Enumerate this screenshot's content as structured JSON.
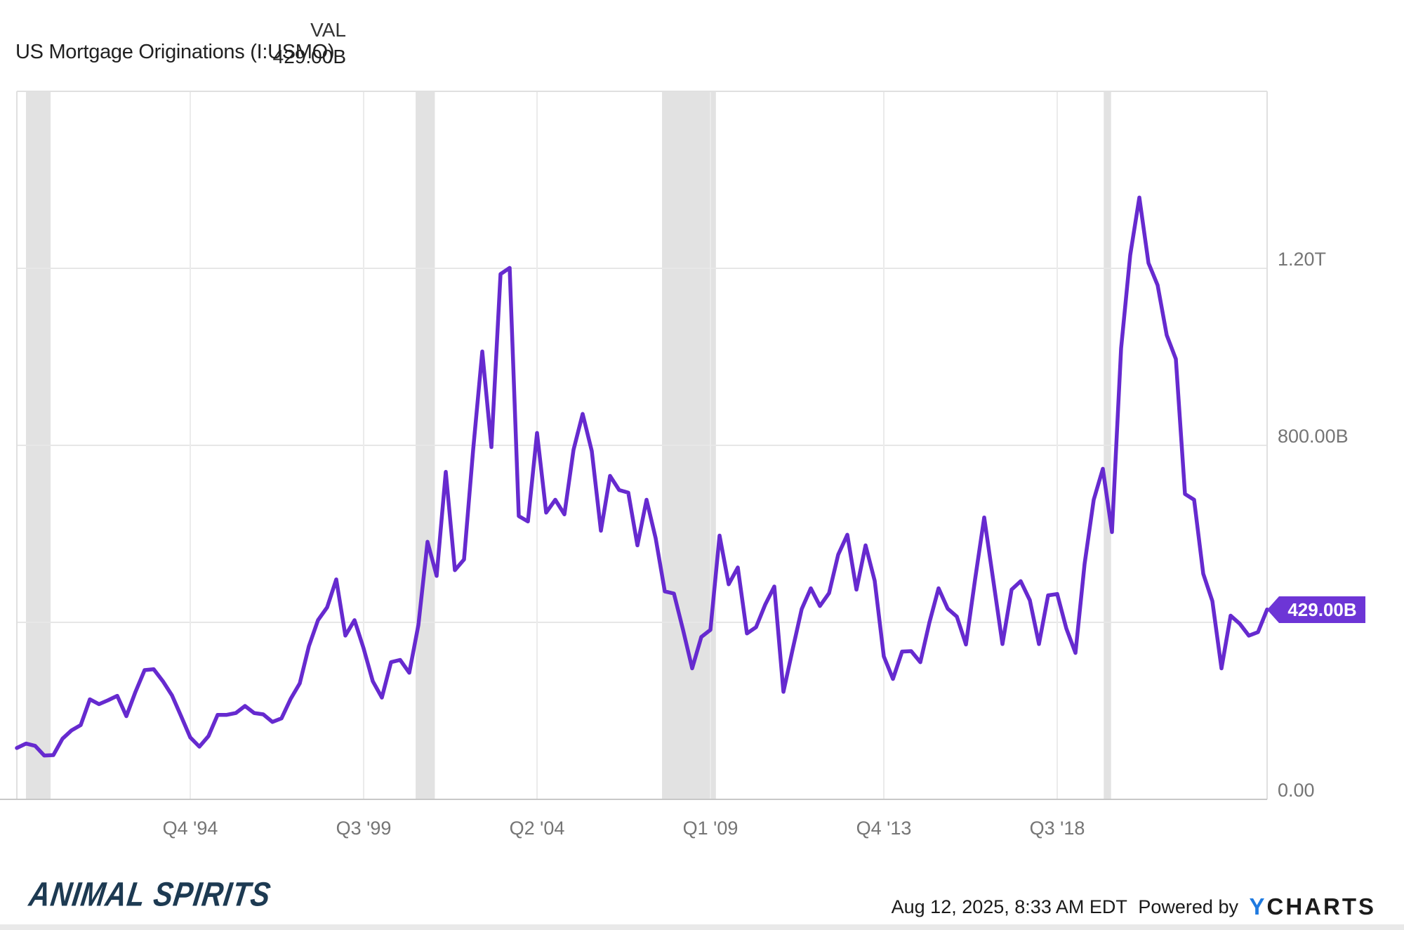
{
  "header": {
    "title": "US Mortgage Originations (I:USMO)",
    "col_label": "VAL",
    "col_value": "429.00B"
  },
  "badge": {
    "label": "429.00B",
    "color": "#6d35d6"
  },
  "footer": {
    "brand": "ANIMAL SPIRITS",
    "timestamp": "Aug 12, 2025, 8:33 AM EDT",
    "powered_by": "Powered by",
    "ycharts_y": "Y",
    "ycharts_rest": "CHARTS"
  },
  "chart_data": {
    "type": "line",
    "title": "US Mortgage Originations (I:USMO)",
    "unit": "USD billions",
    "frequency": "quarterly",
    "x_start": "Q1 1990",
    "x_end": "Q2 2024",
    "ylim": [
      0,
      1600
    ],
    "grid": true,
    "line_color": "#662acf",
    "band_color": "#e2e2e2",
    "latest_value": "429.00B",
    "y_ticks": [
      {
        "value": 0,
        "label": "0.00"
      },
      {
        "value": 400,
        "label": ""
      },
      {
        "value": 800,
        "label": "800.00B"
      },
      {
        "value": 1200,
        "label": "1.20T"
      }
    ],
    "x_ticks": [
      {
        "q": 19,
        "label": "Q4 '94"
      },
      {
        "q": 38,
        "label": "Q3 '99"
      },
      {
        "q": 57,
        "label": "Q2 '04"
      },
      {
        "q": 76,
        "label": "Q1 '09"
      },
      {
        "q": 95,
        "label": "Q4 '13"
      },
      {
        "q": 114,
        "label": "Q3 '18"
      }
    ],
    "recession_bands_q": [
      [
        1.0,
        3.7
      ],
      [
        43.7,
        45.8
      ],
      [
        70.7,
        76.6
      ],
      [
        119.1,
        119.9
      ]
    ],
    "categories": [
      "Q1 '90",
      "Q2 '90",
      "Q3 '90",
      "Q4 '90",
      "Q1 '91",
      "Q2 '91",
      "Q3 '91",
      "Q4 '91",
      "Q1 '92",
      "Q2 '92",
      "Q3 '92",
      "Q4 '92",
      "Q1 '93",
      "Q2 '93",
      "Q3 '93",
      "Q4 '93",
      "Q1 '94",
      "Q2 '94",
      "Q3 '94",
      "Q4 '94",
      "Q1 '95",
      "Q2 '95",
      "Q3 '95",
      "Q4 '95",
      "Q1 '96",
      "Q2 '96",
      "Q3 '96",
      "Q4 '96",
      "Q1 '97",
      "Q2 '97",
      "Q3 '97",
      "Q4 '97",
      "Q1 '98",
      "Q2 '98",
      "Q3 '98",
      "Q4 '98",
      "Q1 '99",
      "Q2 '99",
      "Q3 '99",
      "Q4 '99",
      "Q1 '00",
      "Q2 '00",
      "Q3 '00",
      "Q4 '00",
      "Q1 '01",
      "Q2 '01",
      "Q3 '01",
      "Q4 '01",
      "Q1 '02",
      "Q2 '02",
      "Q3 '02",
      "Q4 '02",
      "Q1 '03",
      "Q2 '03",
      "Q3 '03",
      "Q4 '03",
      "Q1 '04",
      "Q2 '04",
      "Q3 '04",
      "Q4 '04",
      "Q1 '05",
      "Q2 '05",
      "Q3 '05",
      "Q4 '05",
      "Q1 '06",
      "Q2 '06",
      "Q3 '06",
      "Q4 '06",
      "Q1 '07",
      "Q2 '07",
      "Q3 '07",
      "Q4 '07",
      "Q1 '08",
      "Q2 '08",
      "Q3 '08",
      "Q4 '08",
      "Q1 '09",
      "Q2 '09",
      "Q3 '09",
      "Q4 '09",
      "Q1 '10",
      "Q2 '10",
      "Q3 '10",
      "Q4 '10",
      "Q1 '11",
      "Q2 '11",
      "Q3 '11",
      "Q4 '11",
      "Q1 '12",
      "Q2 '12",
      "Q3 '12",
      "Q4 '12",
      "Q1 '13",
      "Q2 '13",
      "Q3 '13",
      "Q4 '13",
      "Q1 '14",
      "Q2 '14",
      "Q3 '14",
      "Q4 '14",
      "Q1 '15",
      "Q2 '15",
      "Q3 '15",
      "Q4 '15",
      "Q1 '16",
      "Q2 '16",
      "Q3 '16",
      "Q4 '16",
      "Q1 '17",
      "Q2 '17",
      "Q3 '17",
      "Q4 '17",
      "Q1 '18",
      "Q2 '18",
      "Q3 '18",
      "Q4 '18",
      "Q1 '19",
      "Q2 '19",
      "Q3 '19",
      "Q4 '19",
      "Q1 '20",
      "Q2 '20",
      "Q3 '20",
      "Q4 '20",
      "Q1 '21",
      "Q2 '21",
      "Q3 '21",
      "Q4 '21",
      "Q1 '22",
      "Q2 '22",
      "Q3 '22",
      "Q4 '22",
      "Q1 '23",
      "Q2 '23",
      "Q3 '23",
      "Q4 '23",
      "Q1 '24",
      "Q2 '24"
    ],
    "values": [
      116,
      126,
      121,
      99,
      100,
      137,
      156,
      168,
      226,
      215,
      224,
      234,
      188,
      243,
      292,
      294,
      267,
      235,
      188,
      140,
      119,
      143,
      191,
      191,
      195,
      211,
      195,
      192,
      175,
      183,
      227,
      262,
      346,
      405,
      434,
      497,
      370,
      405,
      341,
      267,
      230,
      310,
      315,
      286,
      394,
      582,
      505,
      740,
      518,
      542,
      790,
      1012,
      796,
      1187,
      1201,
      640,
      628,
      828,
      648,
      677,
      644,
      790,
      871,
      787,
      607,
      731,
      699,
      693,
      574,
      677,
      590,
      470,
      465,
      383,
      296,
      367,
      383,
      596,
      486,
      524,
      375,
      389,
      440,
      481,
      243,
      338,
      430,
      477,
      437,
      466,
      553,
      598,
      474,
      574,
      494,
      323,
      272,
      334,
      335,
      310,
      400,
      477,
      431,
      413,
      350,
      497,
      637,
      494,
      351,
      474,
      493,
      450,
      351,
      461,
      464,
      386,
      331,
      532,
      677,
      747,
      604,
      1019,
      1230,
      1360,
      1212,
      1162,
      1049,
      995,
      690,
      677,
      510,
      448,
      296,
      415,
      397,
      370,
      378,
      429
    ]
  }
}
